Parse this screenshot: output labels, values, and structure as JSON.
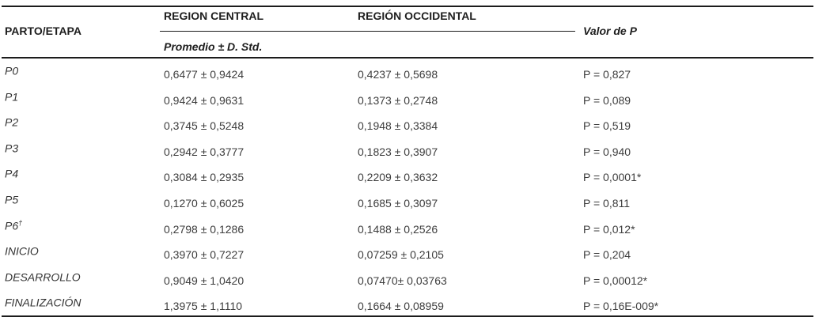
{
  "table": {
    "col1_header": "PARTO/ETAPA",
    "group_headers": [
      "REGION CENTRAL",
      "REGIÓN OCCIDENTAL"
    ],
    "sub_header": "Promedio ± D. Std.",
    "p_header": "Valor de P",
    "rows": [
      {
        "label": "P0",
        "sup": "",
        "central": "0,6477 ± 0,9424",
        "occidental": "0,4237 ± 0,5698",
        "p": "P = 0,827"
      },
      {
        "label": "P1",
        "sup": "",
        "central": "0,9424 ± 0,9631",
        "occidental": "0,1373 ± 0,2748",
        "p": "P = 0,089"
      },
      {
        "label": "P2",
        "sup": "",
        "central": "0,3745 ± 0,5248",
        "occidental": "0,1948 ± 0,3384",
        "p": "P = 0,519"
      },
      {
        "label": "P3",
        "sup": "",
        "central": "0,2942 ± 0,3777",
        "occidental": "0,1823 ± 0,3907",
        "p": "P = 0,940"
      },
      {
        "label": "P4",
        "sup": "",
        "central": "0,3084 ± 0,2935",
        "occidental": "0,2209 ± 0,3632",
        "p": "P = 0,0001*"
      },
      {
        "label": "P5",
        "sup": "",
        "central": "0,1270 ± 0,6025",
        "occidental": "0,1685 ± 0,3097",
        "p": "P = 0,811"
      },
      {
        "label": "P6",
        "sup": "†",
        "central": "0,2798 ± 0,1286",
        "occidental": "0,1488 ± 0,2526",
        "p": "P = 0,012*"
      },
      {
        "label": "INICIO",
        "sup": "",
        "central": "0,3970 ± 0,7227",
        "occidental": "0,07259 ± 0,2105",
        "p": "P = 0,204"
      },
      {
        "label": "DESARROLLO",
        "sup": "",
        "central": "0,9049 ± 1,0420",
        "occidental": "0,07470± 0,03763",
        "p": "P = 0,00012*"
      },
      {
        "label": "FINALIZACIÓN",
        "sup": "",
        "central": "1,3975 ± 1,1110",
        "occidental": "0,1664 ± 0,08959",
        "p": "P = 0,16E-009*"
      }
    ]
  }
}
